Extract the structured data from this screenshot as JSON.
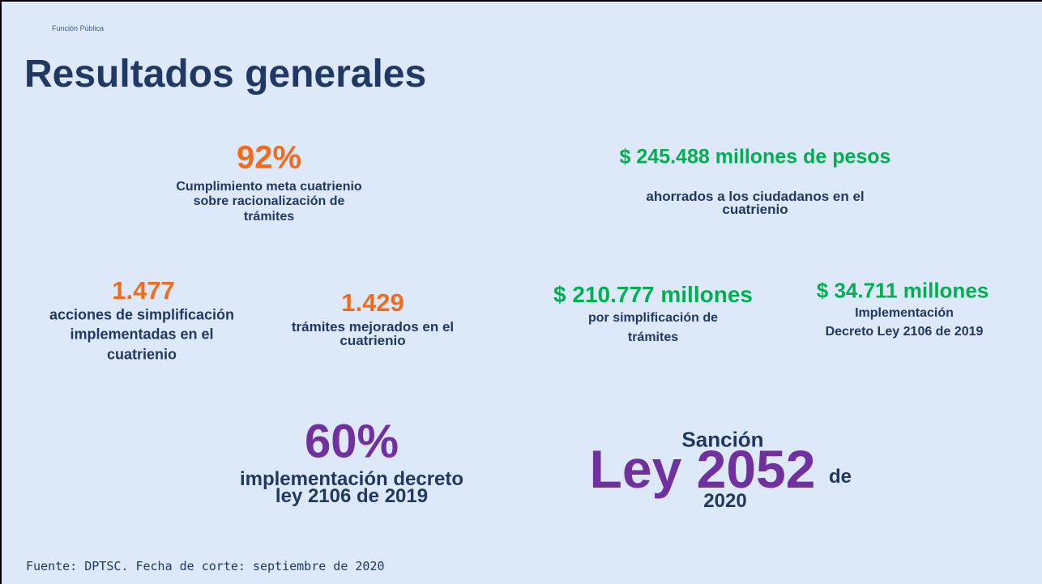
{
  "header": {
    "org": "Función Pública",
    "title": "Resultados generales"
  },
  "stats": [
    {
      "value": "92%",
      "label": [
        "Cumplimiento meta cuatrienio",
        "sobre racionalización de",
        "trámites"
      ]
    },
    {
      "value": "$ 245.488 millones de pesos",
      "label": [
        "ahorrados a los ciudadanos en el",
        "cuatrienio"
      ]
    },
    {
      "value": "1.477",
      "label": [
        "acciones de simplificación",
        "implementadas en el",
        "cuatrienio"
      ]
    },
    {
      "value": "1.429",
      "label": [
        "trámites mejorados en el",
        "cuatrienio"
      ]
    },
    {
      "value": "$ 210.777 millones",
      "label": [
        "por simplificación de",
        "trámites"
      ]
    },
    {
      "value": "$ 34.711 millones",
      "label": [
        "Implementación",
        "Decreto Ley 2106 de 2019"
      ]
    },
    {
      "value": "60%",
      "label": [
        "implementación decreto",
        "ley 2106 de 2019"
      ]
    }
  ],
  "law": {
    "top": "Sanción",
    "main": "Ley 2052",
    "suffix": "de",
    "year": "2020"
  },
  "footer": "Fuente: DPTSC. Fecha de corte: septiembre de 2020"
}
